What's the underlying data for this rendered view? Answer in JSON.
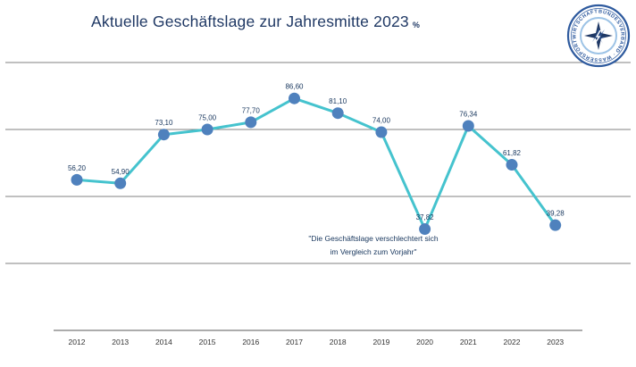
{
  "header": {
    "title": "Aktuelle Geschäftslage zur Jahresmitte 2023",
    "unit": "%"
  },
  "logo": {
    "ring_text": "BUNDESVERBAND · WASSERSPORTWIRTSCHAFT E.V. ·",
    "color": "#2e5a9e"
  },
  "annotation": {
    "line1": "\"Die Geschäftslage verschlechtert sich",
    "line2": "im Vergleich zum Vorjahr\""
  },
  "chart_data": {
    "type": "line",
    "title": "Aktuelle Geschäftslage zur Jahresmitte 2023",
    "unit": "%",
    "categories": [
      "2012",
      "2013",
      "2014",
      "2015",
      "2016",
      "2017",
      "2018",
      "2019",
      "2020",
      "2021",
      "2022",
      "2023"
    ],
    "values": [
      56.2,
      54.9,
      73.1,
      75.0,
      77.7,
      86.6,
      81.1,
      74.0,
      37.82,
      76.34,
      61.82,
      39.28
    ],
    "point_labels": [
      "56,20",
      "54,90",
      "73,10",
      "75,00",
      "77,70",
      "86,60",
      "81,10",
      "74,00",
      "37,82",
      "76,34",
      "61,82",
      "39,28"
    ],
    "ylim": [
      0,
      100
    ],
    "gridline_values": [
      100,
      75,
      50,
      25
    ],
    "grid": true,
    "legend": "none",
    "xlabel": "",
    "ylabel": "",
    "line_color": "#45c3ce",
    "marker_color": "#4f81bd",
    "label_color": "#17365d",
    "grid_color": "#595959",
    "axis_label_color": "#333333"
  }
}
